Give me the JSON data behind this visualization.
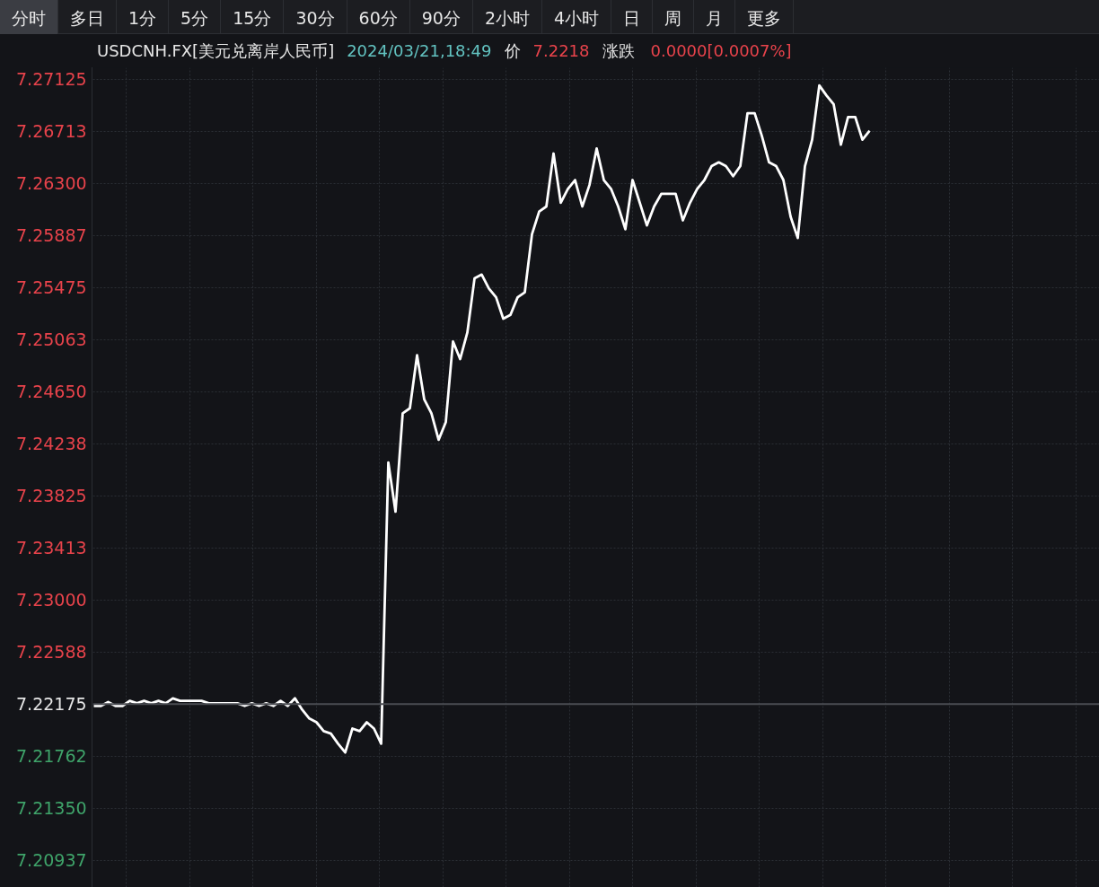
{
  "chart_data": {
    "type": "line",
    "title": "USDCNH.FX[美元兑离岸人民币]",
    "annotations": [
      "分时",
      "多日",
      "1分",
      "5分",
      "15分",
      "30分",
      "60分",
      "90分",
      "2小时",
      "4小时",
      "日",
      "周",
      "月",
      "更多",
      "2024/03/21,18:49",
      "价",
      "7.2218",
      "涨跌",
      "0.0000[0.0007%]"
    ],
    "categories": [
      null,
      null,
      null,
      null,
      null,
      null,
      null,
      null,
      null,
      null,
      null,
      null,
      null,
      null,
      null,
      null,
      null,
      null,
      null,
      null,
      null,
      null,
      null,
      null,
      null,
      null,
      null,
      null,
      null,
      null,
      null,
      null,
      null,
      null,
      null,
      null,
      null,
      null,
      null,
      null,
      null,
      null,
      null,
      null,
      null,
      null,
      null,
      null,
      null,
      null,
      null,
      null,
      null,
      null,
      null,
      null,
      null,
      null,
      null,
      null,
      null,
      null,
      null,
      null,
      null,
      null,
      null,
      null,
      null,
      null,
      null,
      null,
      null,
      null,
      null,
      null,
      null,
      null,
      null,
      null,
      null,
      null,
      null,
      null,
      null,
      null,
      null,
      null,
      null,
      null,
      null,
      null,
      null,
      null,
      null,
      null,
      null,
      null,
      null,
      null,
      null,
      null,
      null,
      null,
      null,
      null,
      null,
      null,
      null,
      null,
      null,
      null,
      null,
      null,
      null,
      null,
      null,
      null,
      null,
      null,
      null,
      null,
      null,
      null,
      null,
      null,
      null,
      null,
      null,
      null,
      null,
      null,
      null,
      null,
      null,
      null,
      null,
      null,
      null,
      null,
      null
    ],
    "series": [
      {
        "color": "#ffffff",
        "values": [
          7.2216,
          7.2216,
          7.2219,
          7.2216,
          7.2216,
          7.222,
          7.2218,
          7.222,
          7.2218,
          7.222,
          7.2218,
          7.2222,
          7.222,
          7.222,
          7.222,
          7.222,
          7.2218,
          7.2218,
          7.2218,
          7.2218,
          7.2218,
          7.2216,
          7.2218,
          7.2216,
          7.2218,
          7.2216,
          7.222,
          7.2216,
          7.2222,
          7.2213,
          7.2206,
          7.2203,
          7.2196,
          7.2194,
          7.2186,
          7.2179,
          7.2198,
          7.2196,
          7.2203,
          7.2198,
          7.2186,
          7.2409,
          7.237,
          7.2448,
          7.2452,
          7.2494,
          7.2459,
          7.2448,
          7.2427,
          7.2441,
          7.2505,
          7.2491,
          7.2512,
          7.2555,
          7.2558,
          7.2547,
          7.254,
          7.2523,
          7.2526,
          7.254,
          7.2544,
          7.259,
          7.2608,
          7.2612,
          7.2654,
          7.2615,
          7.2626,
          7.2633,
          7.2612,
          7.2629,
          7.2658,
          7.2633,
          7.2626,
          7.2612,
          7.2594,
          7.2633,
          7.2615,
          7.2597,
          7.2612,
          7.2622,
          7.2622,
          7.2622,
          7.2601,
          7.2615,
          7.2626,
          7.2633,
          7.2644,
          7.2647,
          7.2644,
          7.2636,
          7.2644,
          7.2686,
          7.2686,
          7.2668,
          7.2647,
          7.2644,
          7.2633,
          7.2604,
          7.2587,
          7.2644,
          7.2665,
          7.2708,
          7.27,
          7.2693,
          7.2661,
          7.2683,
          7.2683,
          7.2665,
          7.2672,
          null,
          null,
          null,
          null,
          null,
          null,
          null,
          null,
          null,
          null,
          null,
          null,
          null,
          null,
          null,
          null,
          null,
          null,
          null,
          null,
          null,
          null,
          null,
          null,
          null,
          null,
          null,
          null,
          null,
          null,
          null,
          null
        ]
      }
    ],
    "ylim": [
      7.2072,
      7.2722
    ],
    "yticks": [
      7.27125,
      7.26713,
      {
        "value": 7.263,
        "label": "7.26300"
      },
      7.25887,
      7.25475,
      7.25063,
      {
        "value": 7.2465,
        "label": "7.24650"
      },
      7.24238,
      7.23825,
      7.23413,
      {
        "value": 7.23,
        "label": "7.23000"
      },
      7.22588,
      7.22175,
      7.21762,
      {
        "value": 7.2135,
        "label": "7.21350"
      },
      7.20937
    ],
    "ref_lines": [
      {
        "axis": "y",
        "value": 7.22175,
        "color": "#4a4c52"
      }
    ],
    "grid": true,
    "tick_labels": "y",
    "marker": "none",
    "line_style": "solid"
  }
}
